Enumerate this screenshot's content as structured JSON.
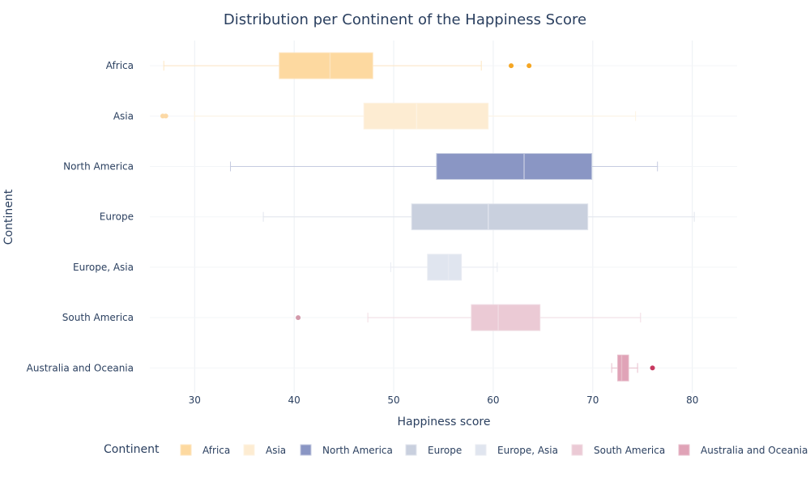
{
  "chart_data": {
    "type": "box",
    "title": "Distribution per Continent of the Happiness Score",
    "xlabel": "Happiness score",
    "ylabel": "Continent",
    "xlim": [
      25.5,
      84.5
    ],
    "xticks": [
      30,
      40,
      50,
      60,
      70,
      80
    ],
    "grid": true,
    "legend_title": "Continent",
    "legend_position": "bottom",
    "series": [
      {
        "name": "Africa",
        "color": "#fdd9a0",
        "line_color": "#fde6c2",
        "min": 26.9,
        "q1": 38.5,
        "median": 43.6,
        "q3": 47.9,
        "max": 58.8,
        "outliers": [
          61.8,
          63.6
        ],
        "outlier_color": "#f5a623"
      },
      {
        "name": "Asia",
        "color": "#fdecd2",
        "line_color": "#fdf3e3",
        "min": 30.0,
        "q1": 47.0,
        "median": 52.3,
        "q3": 59.5,
        "max": 74.3,
        "outliers": [
          26.8,
          27.1
        ],
        "outlier_color": "#fcd9a6"
      },
      {
        "name": "North America",
        "color": "#8a96c4",
        "line_color": "#c5cbe0",
        "min": 33.6,
        "q1": 54.3,
        "median": 63.1,
        "q3": 69.9,
        "max": 76.5,
        "outliers": [],
        "outlier_color": "#8a96c4"
      },
      {
        "name": "Europe",
        "color": "#c9d0de",
        "line_color": "#e1e5ed",
        "min": 36.9,
        "q1": 51.8,
        "median": 59.5,
        "q3": 69.5,
        "max": 80.2,
        "outliers": [],
        "outlier_color": "#c9d0de"
      },
      {
        "name": "Europe, Asia",
        "color": "#e0e5ef",
        "line_color": "#e8ebf2",
        "min": 49.7,
        "q1": 53.4,
        "median": 55.5,
        "q3": 56.8,
        "max": 60.4,
        "outliers": [],
        "outlier_color": "#e0e5ef"
      },
      {
        "name": "South America",
        "color": "#ebcad5",
        "line_color": "#f1dce3",
        "min": 47.4,
        "q1": 57.8,
        "median": 60.5,
        "q3": 64.7,
        "max": 74.8,
        "outliers": [
          40.4
        ],
        "outlier_color": "#d39aab"
      },
      {
        "name": "Australia and Oceania",
        "color": "#e0a3b7",
        "line_color": "#e8bfcc",
        "min": 71.9,
        "q1": 72.5,
        "median": 72.9,
        "q3": 73.6,
        "max": 74.5,
        "outliers": [
          76.0
        ],
        "outlier_color": "#c7385f"
      }
    ]
  }
}
